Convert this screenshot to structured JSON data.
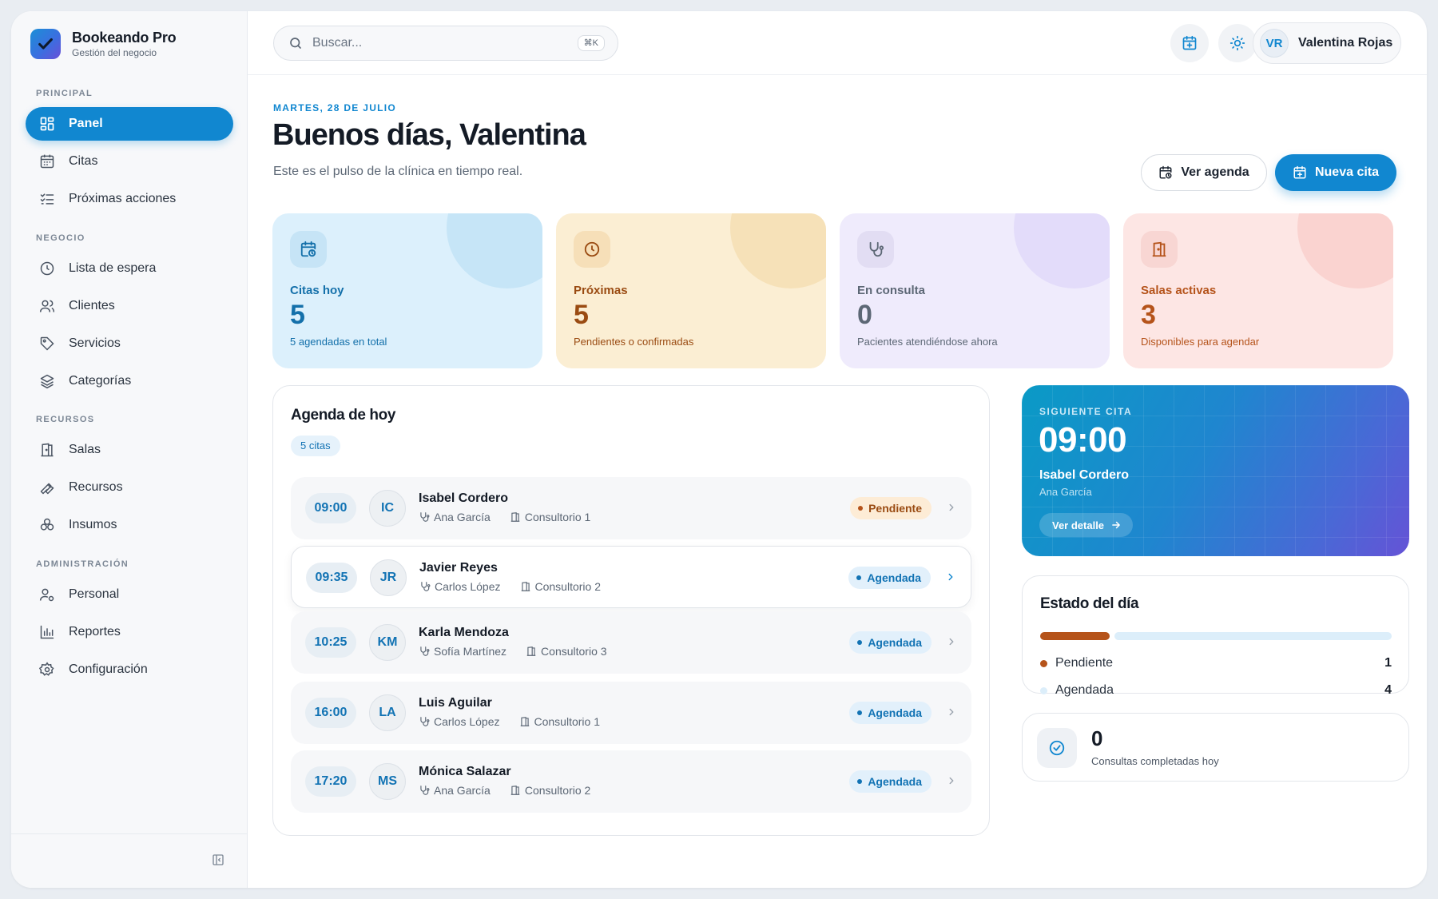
{
  "brand": {
    "name": "Bookeando Pro",
    "subtitle": "Gestión del negocio"
  },
  "sidebar": {
    "sections": [
      {
        "title": "PRINCIPAL",
        "items": [
          {
            "label": "Panel",
            "icon": "grid-icon",
            "active": true
          },
          {
            "label": "Citas",
            "icon": "calendar-icon"
          },
          {
            "label": "Próximas acciones",
            "icon": "checklist-icon"
          }
        ]
      },
      {
        "title": "NEGOCIO",
        "items": [
          {
            "label": "Lista de espera",
            "icon": "clock-icon"
          },
          {
            "label": "Clientes",
            "icon": "users-icon"
          },
          {
            "label": "Servicios",
            "icon": "tag-icon"
          },
          {
            "label": "Categorías",
            "icon": "layers-icon"
          }
        ]
      },
      {
        "title": "RECURSOS",
        "items": [
          {
            "label": "Salas",
            "icon": "door-icon"
          },
          {
            "label": "Recursos",
            "icon": "wrench-icon"
          },
          {
            "label": "Insumos",
            "icon": "boxes-icon"
          }
        ]
      },
      {
        "title": "ADMINISTRACIÓN",
        "items": [
          {
            "label": "Personal",
            "icon": "user-cog-icon"
          },
          {
            "label": "Reportes",
            "icon": "bar-chart-icon"
          },
          {
            "label": "Configuración",
            "icon": "gear-icon"
          }
        ]
      }
    ]
  },
  "topbar": {
    "search_placeholder": "Buscar...",
    "shortcut": "⌘K",
    "user": {
      "initials": "VR",
      "name": "Valentina Rojas"
    }
  },
  "header": {
    "date": "MARTES, 28 DE JULIO",
    "greeting": "Buenos días, Valentina",
    "subtitle": "Este es el pulso de la clínica en tiempo real.",
    "view_agenda": "Ver agenda",
    "new_appt": "Nueva cita"
  },
  "stats": [
    {
      "label": "Citas hoy",
      "value": "5",
      "note": "5 agendadas en total",
      "icon": "calendar-clock-icon",
      "bg": "#dcf0fc",
      "accent": "#1470aa",
      "deco": "#c6e5f7",
      "iconbg": "#c6e4f6"
    },
    {
      "label": "Próximas",
      "value": "5",
      "note": "Pendientes o confirmadas",
      "icon": "clock-icon",
      "bg": "#fbeed3",
      "accent": "#9a4b12",
      "deco": "#f6e1b8",
      "iconbg": "#f6dfb8"
    },
    {
      "label": "En consulta",
      "value": "0",
      "note": "Pacientes atendiéndose ahora",
      "icon": "stethoscope-icon",
      "bg": "#efebfc",
      "accent": "#5c6775",
      "deco": "#e3dcfa",
      "iconbg": "#e2ddf3"
    },
    {
      "label": "Salas activas",
      "value": "3",
      "note": "Disponibles para agendar",
      "icon": "door-icon",
      "bg": "#fde6e4",
      "accent": "#b5531a",
      "deco": "#fad3d0",
      "iconbg": "#f8d6d3"
    }
  ],
  "agenda": {
    "title": "Agenda de hoy",
    "count_label": "5 citas",
    "items": [
      {
        "time": "09:00",
        "initials": "IC",
        "name": "Isabel Cordero",
        "staff": "Ana García",
        "room": "Consultorio 1",
        "status": "Pendiente",
        "kind": "pend"
      },
      {
        "time": "09:35",
        "initials": "JR",
        "name": "Javier Reyes",
        "staff": "Carlos López",
        "room": "Consultorio 2",
        "status": "Agendada",
        "kind": "agen",
        "highlighted": true
      },
      {
        "time": "10:25",
        "initials": "KM",
        "name": "Karla Mendoza",
        "staff": "Sofía Martínez",
        "room": "Consultorio 3",
        "status": "Agendada",
        "kind": "agen"
      },
      {
        "time": "16:00",
        "initials": "LA",
        "name": "Luis Aguilar",
        "staff": "Carlos López",
        "room": "Consultorio 1",
        "status": "Agendada",
        "kind": "agen"
      },
      {
        "time": "17:20",
        "initials": "MS",
        "name": "Mónica Salazar",
        "staff": "Ana García",
        "room": "Consultorio 2",
        "status": "Agendada",
        "kind": "agen"
      }
    ]
  },
  "next": {
    "eyebrow": "SIGUIENTE CITA",
    "time": "09:00",
    "patient": "Isabel Cordero",
    "staff": "Ana García",
    "detail_label": "Ver detalle"
  },
  "estado": {
    "title": "Estado del día",
    "rows": [
      {
        "label": "Pendiente",
        "count": "1",
        "color": "#b5531a"
      },
      {
        "label": "Agendada",
        "count": "4",
        "color": "#dceefa"
      }
    ]
  },
  "completed": {
    "value": "0",
    "label": "Consultas completadas hoy"
  },
  "colors": {
    "accent": "#1187d0"
  }
}
